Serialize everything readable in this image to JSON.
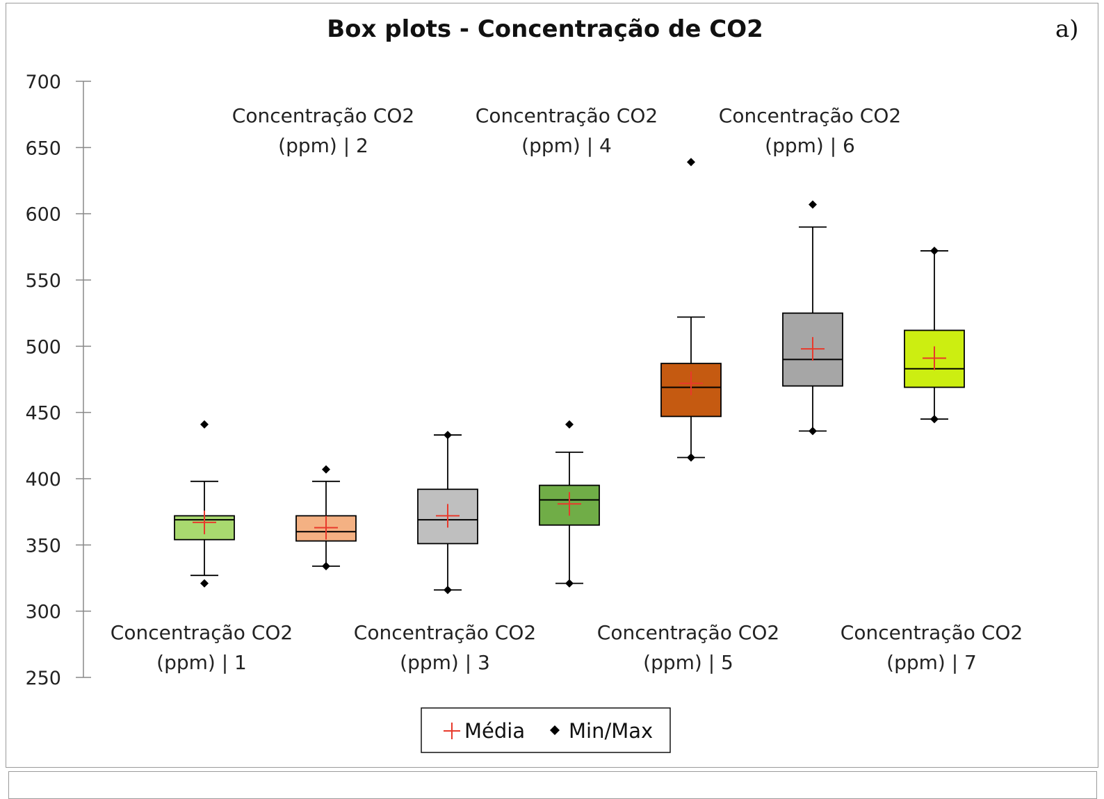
{
  "panel_label": "a)",
  "legend": {
    "mean_label": "Média",
    "minmax_label": "Min/Max"
  },
  "colors": {
    "mean_marker": "#e8392b",
    "minmax_marker": "#000000",
    "axis": "#888888"
  },
  "chart_data": {
    "type": "box",
    "title": "Box plots - Concentração de CO2",
    "xlabel": "",
    "ylabel": "",
    "ylim": [
      250,
      700
    ],
    "yticks": [
      250,
      300,
      350,
      400,
      450,
      500,
      550,
      600,
      650,
      700
    ],
    "grid": false,
    "legend_position": "bottom",
    "boxes": [
      {
        "label": [
          "Concentração CO2",
          "(ppm) | 1"
        ],
        "label_position": "below",
        "color": "#a9d96f",
        "whisker_low": 327,
        "q1": 354,
        "median": 369,
        "q3": 372,
        "whisker_high": 398,
        "mean": 367,
        "min": 321,
        "max": 441
      },
      {
        "label": [
          "Concentração CO2",
          "(ppm) | 2"
        ],
        "label_position": "above",
        "color": "#f4b183",
        "whisker_low": 334,
        "q1": 353,
        "median": 360,
        "q3": 372,
        "whisker_high": 398,
        "mean": 363,
        "min": 334,
        "max": 407
      },
      {
        "label": [
          "Concentração CO2",
          "(ppm) | 3"
        ],
        "label_position": "below",
        "color": "#bfbfbf",
        "whisker_low": 316,
        "q1": 351,
        "median": 369,
        "q3": 392,
        "whisker_high": 433,
        "mean": 372,
        "min": 316,
        "max": 433
      },
      {
        "label": [
          "Concentração CO2",
          "(ppm) | 4"
        ],
        "label_position": "above",
        "color": "#70ad47",
        "whisker_low": 321,
        "q1": 365,
        "median": 384,
        "q3": 395,
        "whisker_high": 420,
        "mean": 381,
        "min": 321,
        "max": 441
      },
      {
        "label": [
          "Concentração CO2",
          "(ppm) | 5"
        ],
        "label_position": "below",
        "color": "#c55a11",
        "whisker_low": 416,
        "q1": 447,
        "median": 469,
        "q3": 487,
        "whisker_high": 522,
        "mean": 472,
        "min": 416,
        "max": 639
      },
      {
        "label": [
          "Concentração CO2",
          "(ppm) | 6"
        ],
        "label_position": "above",
        "color": "#a6a6a6",
        "whisker_low": 436,
        "q1": 470,
        "median": 490,
        "q3": 525,
        "whisker_high": 590,
        "mean": 498,
        "min": 436,
        "max": 607
      },
      {
        "label": [
          "Concentração CO2",
          "(ppm) | 7"
        ],
        "label_position": "below",
        "color": "#ccee11",
        "whisker_low": 445,
        "q1": 469,
        "median": 483,
        "q3": 512,
        "whisker_high": 572,
        "mean": 491,
        "min": 445,
        "max": 572
      }
    ]
  }
}
